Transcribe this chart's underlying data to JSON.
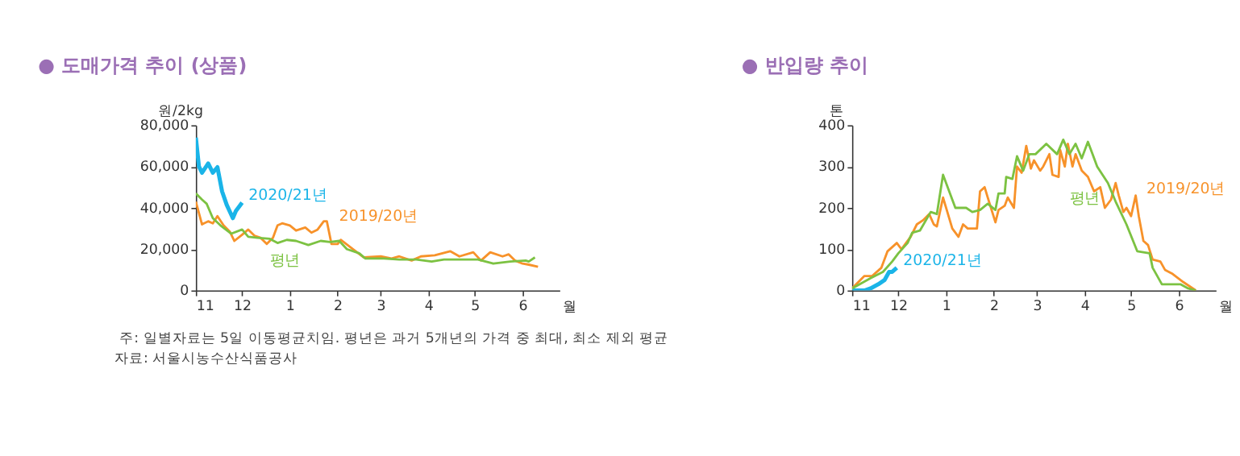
{
  "chart_data": [
    {
      "type": "line",
      "title": "● 도매가격 추이 (상품)",
      "ylabel": "원/2kg",
      "xlabel": "월",
      "xlim": [
        "2020-11-01",
        "2021-06-25"
      ],
      "ylim": [
        0,
        80000
      ],
      "xticks": [
        {
          "value": "2020-11-01",
          "label": "11"
        },
        {
          "value": "2020-12-01",
          "label": "12"
        },
        {
          "value": "2021-01-01",
          "label": "1"
        },
        {
          "value": "2021-02-01",
          "label": "2"
        },
        {
          "value": "2021-03-01",
          "label": "3"
        },
        {
          "value": "2021-04-01",
          "label": "4"
        },
        {
          "value": "2021-05-01",
          "label": "5"
        },
        {
          "value": "2021-06-01",
          "label": "6"
        }
      ],
      "yticks": [
        0,
        {
          "value": 20000,
          "label": "20,000"
        },
        {
          "value": 40000,
          "label": "40,000"
        },
        {
          "value": 60000,
          "label": "60,000"
        },
        {
          "value": 80000,
          "label": "80,000"
        }
      ],
      "grid": false,
      "series": [
        {
          "color": "#1ab4e8",
          "x": [
            "2020-11-01",
            "2020-11-03",
            "2020-11-05",
            "2020-11-09",
            "2020-11-12",
            "2020-11-15",
            "2020-11-18",
            "2020-11-21",
            "2020-11-25",
            "2020-11-27",
            "2020-12-01"
          ],
          "values": [
            74000,
            60000,
            57000,
            61500,
            57000,
            59700,
            48000,
            41500,
            35000,
            38500,
            42500
          ]
        },
        {
          "color": "#f7922a",
          "x": [
            "2020-11-01",
            "2020-11-05",
            "2020-11-09",
            "2020-11-12",
            "2020-11-15",
            "2020-11-19",
            "2020-11-23",
            "2020-11-26",
            "2020-12-01",
            "2020-12-05",
            "2020-12-09",
            "2020-12-13",
            "2020-12-17",
            "2020-12-21",
            "2020-12-24",
            "2020-12-27",
            "2021-01-01",
            "2021-01-05",
            "2021-01-11",
            "2021-01-15",
            "2021-01-19",
            "2021-01-23",
            "2021-01-25",
            "2021-01-28",
            "2021-02-01",
            "2021-02-03",
            "2021-02-11",
            "2021-02-18",
            "2021-03-01",
            "2021-03-08",
            "2021-03-13",
            "2021-03-21",
            "2021-03-27",
            "2021-04-05",
            "2021-04-15",
            "2021-04-21",
            "2021-04-30",
            "2021-05-05",
            "2021-05-11",
            "2021-05-19",
            "2021-05-23",
            "2021-05-27",
            "2021-06-01",
            "2021-06-05",
            "2021-06-11"
          ],
          "values": [
            43000,
            32000,
            33500,
            32500,
            36000,
            31500,
            28500,
            24000,
            27000,
            29500,
            26500,
            25500,
            22500,
            25500,
            31500,
            32500,
            31500,
            29000,
            30500,
            28000,
            29500,
            33500,
            33500,
            22500,
            22500,
            24500,
            20000,
            16000,
            16500,
            15500,
            16500,
            14500,
            16500,
            17000,
            19000,
            16500,
            18500,
            14500,
            18500,
            16500,
            17500,
            14500,
            13000,
            12500,
            11500
          ]
        },
        {
          "color": "#7cc242",
          "x": [
            "2020-11-01",
            "2020-11-05",
            "2020-11-08",
            "2020-11-12",
            "2020-11-17",
            "2020-11-24",
            "2020-12-01",
            "2020-12-05",
            "2020-12-11",
            "2020-12-19",
            "2020-12-24",
            "2020-12-30",
            "2021-01-05",
            "2021-01-13",
            "2021-01-21",
            "2021-01-27",
            "2021-02-02",
            "2021-02-07",
            "2021-02-15",
            "2021-02-19",
            "2021-03-03",
            "2021-03-13",
            "2021-03-24",
            "2021-04-03",
            "2021-04-11",
            "2021-04-21",
            "2021-05-03",
            "2021-05-13",
            "2021-05-24",
            "2021-06-03",
            "2021-06-05",
            "2021-06-09"
          ],
          "values": [
            47000,
            44000,
            42000,
            35000,
            31500,
            27500,
            29500,
            26000,
            25500,
            25000,
            23000,
            24500,
            24000,
            22000,
            24000,
            23500,
            24000,
            20000,
            18000,
            15500,
            15500,
            15000,
            15000,
            14000,
            15000,
            15000,
            15000,
            13000,
            14000,
            14500,
            14000,
            16000
          ]
        }
      ],
      "annotations": [
        {
          "text": "2020/21년",
          "x": "2020-12-01",
          "y": 42500
        },
        {
          "text": "2019/20년",
          "x": "2021-01-28",
          "y": 22500
        },
        {
          "text": "평년",
          "x": "2021-01-13",
          "y": 22000
        },
        "주: 일별자료는 5일 이동평균치임. 평년은 과거 5개년의 가격 중 최대, 최소 제외 평균",
        "자료: 서울시농수산식품공사"
      ]
    },
    {
      "type": "line",
      "title": "● 반입량 추이",
      "ylabel": "톤",
      "xlabel": "월",
      "xlim": [
        "2020-11-01",
        "2021-06-25"
      ],
      "ylim": [
        0,
        400
      ],
      "xticks": [
        {
          "value": "2020-11-01",
          "label": "11"
        },
        {
          "value": "2020-12-01",
          "label": "12"
        },
        {
          "value": "2021-01-01",
          "label": "1"
        },
        {
          "value": "2021-02-01",
          "label": "2"
        },
        {
          "value": "2021-03-01",
          "label": "3"
        },
        {
          "value": "2021-04-01",
          "label": "4"
        },
        {
          "value": "2021-05-01",
          "label": "5"
        },
        {
          "value": "2021-06-01",
          "label": "6"
        }
      ],
      "yticks": [
        0,
        100,
        200,
        300,
        400
      ],
      "grid": false,
      "series": [
        {
          "color": "#1ab4e8",
          "x": [
            "2020-11-01",
            "2020-11-09",
            "2020-11-13",
            "2020-11-18",
            "2020-11-22",
            "2020-11-25",
            "2020-11-27",
            "2020-11-30"
          ],
          "values": [
            0,
            0,
            5,
            15,
            25,
            45,
            45,
            55
          ]
        },
        {
          "color": "#f7922a",
          "x": [
            "2020-11-01",
            "2020-11-09",
            "2020-11-14",
            "2020-11-20",
            "2020-11-24",
            "2020-11-30",
            "2020-12-03",
            "2020-12-09",
            "2020-12-13",
            "2020-12-17",
            "2020-12-21",
            "2020-12-24",
            "2020-12-26",
            "2020-12-30",
            "2021-01-05",
            "2021-01-09",
            "2021-01-12",
            "2021-01-15",
            "2021-01-21",
            "2021-01-23",
            "2021-01-26",
            "2021-01-28",
            "2021-02-02",
            "2021-02-04",
            "2021-02-08",
            "2021-02-10",
            "2021-02-14",
            "2021-02-16",
            "2021-02-19",
            "2021-02-22",
            "2021-02-25",
            "2021-02-27",
            "2021-03-03",
            "2021-03-05",
            "2021-03-09",
            "2021-03-11",
            "2021-03-15",
            "2021-03-16",
            "2021-03-19",
            "2021-03-21",
            "2021-03-24",
            "2021-03-26",
            "2021-03-30",
            "2021-04-03",
            "2021-04-07",
            "2021-04-11",
            "2021-04-14",
            "2021-04-18",
            "2021-04-21",
            "2021-04-23",
            "2021-04-26",
            "2021-04-28",
            "2021-05-01",
            "2021-05-04",
            "2021-05-06",
            "2021-05-09",
            "2021-05-12",
            "2021-05-15",
            "2021-05-20",
            "2021-05-23",
            "2021-05-28",
            "2021-06-04",
            "2021-06-12"
          ],
          "values": [
            5,
            35,
            35,
            55,
            95,
            115,
            100,
            130,
            160,
            170,
            185,
            160,
            155,
            225,
            150,
            130,
            160,
            150,
            150,
            240,
            250,
            225,
            165,
            195,
            205,
            225,
            200,
            300,
            285,
            350,
            295,
            315,
            290,
            300,
            330,
            280,
            275,
            340,
            300,
            355,
            300,
            330,
            290,
            275,
            240,
            250,
            200,
            220,
            260,
            230,
            190,
            200,
            180,
            230,
            180,
            120,
            110,
            75,
            70,
            50,
            40,
            20,
            0
          ]
        },
        {
          "color": "#7cc242",
          "x": [
            "2020-11-01",
            "2020-11-13",
            "2020-11-21",
            "2020-11-27",
            "2020-12-01",
            "2020-12-07",
            "2020-12-10",
            "2020-12-15",
            "2020-12-22",
            "2020-12-26",
            "2020-12-30",
            "2021-01-05",
            "2021-01-07",
            "2021-01-14",
            "2021-01-18",
            "2021-01-23",
            "2021-01-28",
            "2021-02-02",
            "2021-02-04",
            "2021-02-08",
            "2021-02-09",
            "2021-02-13",
            "2021-02-16",
            "2021-02-20",
            "2021-02-24",
            "2021-02-28",
            "2021-03-07",
            "2021-03-14",
            "2021-03-18",
            "2021-03-22",
            "2021-03-26",
            "2021-03-30",
            "2021-04-03",
            "2021-04-06",
            "2021-04-09",
            "2021-04-16",
            "2021-04-21",
            "2021-04-28",
            "2021-05-05",
            "2021-05-13",
            "2021-05-15",
            "2021-05-21",
            "2021-06-02",
            "2021-06-07",
            "2021-06-12"
          ],
          "values": [
            5,
            30,
            45,
            70,
            90,
            115,
            140,
            145,
            190,
            185,
            280,
            220,
            200,
            200,
            190,
            195,
            210,
            195,
            235,
            235,
            275,
            270,
            325,
            290,
            330,
            330,
            355,
            330,
            365,
            330,
            355,
            320,
            360,
            330,
            300,
            260,
            215,
            160,
            95,
            90,
            55,
            15,
            15,
            5,
            0
          ]
        }
      ],
      "annotations": [
        {
          "text": "2020/21년",
          "x": "2020-11-30",
          "y": 55
        },
        {
          "text": "2019/20년",
          "x": "2021-05-06",
          "y": 180
        },
        {
          "text": "평년",
          "x": "2021-04-16",
          "y": 260
        }
      ]
    }
  ]
}
